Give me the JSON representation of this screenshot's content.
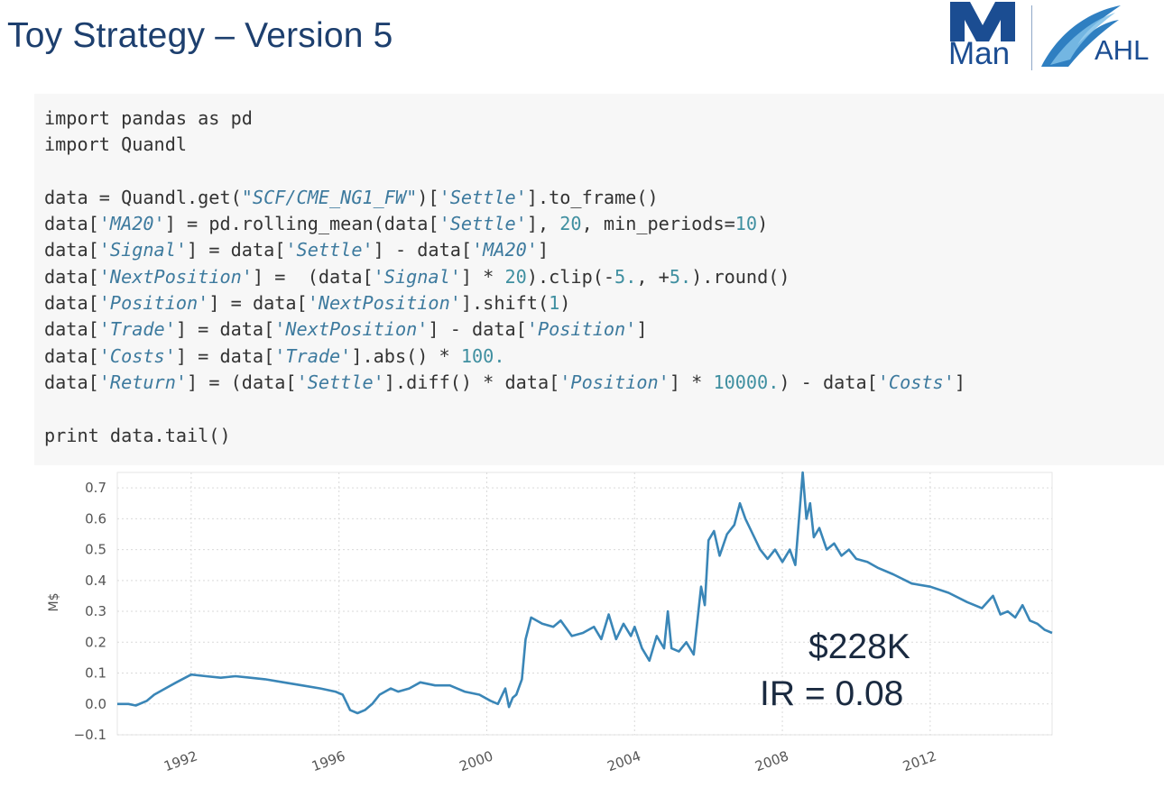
{
  "slide": {
    "title": "Toy Strategy – Version 5"
  },
  "logo": {
    "man_text": "Man",
    "ahl_text": "AHL",
    "color": "#1b4d92"
  },
  "code": {
    "lines": [
      [
        {
          "t": "import pandas as pd",
          "c": ""
        }
      ],
      [
        {
          "t": "import Quandl",
          "c": ""
        }
      ],
      [
        {
          "t": "",
          "c": ""
        }
      ],
      [
        {
          "t": "data = Quandl.get(",
          "c": ""
        },
        {
          "t": "\"SCF/CME_NG1_FW\"",
          "c": "str"
        },
        {
          "t": ")[",
          "c": ""
        },
        {
          "t": "'Settle'",
          "c": "str"
        },
        {
          "t": "].to_frame()",
          "c": ""
        }
      ],
      [
        {
          "t": "data[",
          "c": ""
        },
        {
          "t": "'MA20'",
          "c": "str"
        },
        {
          "t": "] = pd.rolling_mean(data[",
          "c": ""
        },
        {
          "t": "'Settle'",
          "c": "str"
        },
        {
          "t": "], ",
          "c": ""
        },
        {
          "t": "20",
          "c": "num"
        },
        {
          "t": ", min_periods=",
          "c": ""
        },
        {
          "t": "10",
          "c": "num"
        },
        {
          "t": ")",
          "c": ""
        }
      ],
      [
        {
          "t": "data[",
          "c": ""
        },
        {
          "t": "'Signal'",
          "c": "str"
        },
        {
          "t": "] = data[",
          "c": ""
        },
        {
          "t": "'Settle'",
          "c": "str"
        },
        {
          "t": "] - data[",
          "c": ""
        },
        {
          "t": "'MA20'",
          "c": "str"
        },
        {
          "t": "]",
          "c": ""
        }
      ],
      [
        {
          "t": "data[",
          "c": ""
        },
        {
          "t": "'NextPosition'",
          "c": "str"
        },
        {
          "t": "] =  (data[",
          "c": ""
        },
        {
          "t": "'Signal'",
          "c": "str"
        },
        {
          "t": "] * ",
          "c": ""
        },
        {
          "t": "20",
          "c": "num"
        },
        {
          "t": ").clip(-",
          "c": ""
        },
        {
          "t": "5.",
          "c": "num"
        },
        {
          "t": ", +",
          "c": ""
        },
        {
          "t": "5.",
          "c": "num"
        },
        {
          "t": ").round()",
          "c": ""
        }
      ],
      [
        {
          "t": "data[",
          "c": ""
        },
        {
          "t": "'Position'",
          "c": "str"
        },
        {
          "t": "] = data[",
          "c": ""
        },
        {
          "t": "'NextPosition'",
          "c": "str"
        },
        {
          "t": "].shift(",
          "c": ""
        },
        {
          "t": "1",
          "c": "num"
        },
        {
          "t": ")",
          "c": ""
        }
      ],
      [
        {
          "t": "data[",
          "c": ""
        },
        {
          "t": "'Trade'",
          "c": "str"
        },
        {
          "t": "] = data[",
          "c": ""
        },
        {
          "t": "'NextPosition'",
          "c": "str"
        },
        {
          "t": "] - data[",
          "c": ""
        },
        {
          "t": "'Position'",
          "c": "str"
        },
        {
          "t": "]",
          "c": ""
        }
      ],
      [
        {
          "t": "data[",
          "c": ""
        },
        {
          "t": "'Costs'",
          "c": "str"
        },
        {
          "t": "] = data[",
          "c": ""
        },
        {
          "t": "'Trade'",
          "c": "str"
        },
        {
          "t": "].abs() * ",
          "c": ""
        },
        {
          "t": "100.",
          "c": "num"
        }
      ],
      [
        {
          "t": "data[",
          "c": ""
        },
        {
          "t": "'Return'",
          "c": "str"
        },
        {
          "t": "] = (data[",
          "c": ""
        },
        {
          "t": "'Settle'",
          "c": "str"
        },
        {
          "t": "].diff() * data[",
          "c": ""
        },
        {
          "t": "'Position'",
          "c": "str"
        },
        {
          "t": "] * ",
          "c": ""
        },
        {
          "t": "10000.",
          "c": "num"
        },
        {
          "t": ") - data[",
          "c": ""
        },
        {
          "t": "'Costs'",
          "c": "str"
        },
        {
          "t": "]",
          "c": ""
        }
      ],
      [
        {
          "t": "",
          "c": ""
        }
      ],
      [
        {
          "t": "print data.tail()",
          "c": ""
        }
      ]
    ]
  },
  "annotations": {
    "pnl": "$228K",
    "ir": "IR = 0.08"
  },
  "chart_data": {
    "type": "line",
    "title": "",
    "xlabel": "",
    "ylabel": "M$",
    "xlim": [
      1990.0,
      2015.3
    ],
    "ylim": [
      -0.1,
      0.75
    ],
    "x_ticks": [
      1992,
      1996,
      2000,
      2004,
      2008,
      2012
    ],
    "y_ticks": [
      -0.1,
      0.0,
      0.1,
      0.2,
      0.3,
      0.4,
      0.5,
      0.6,
      0.7
    ],
    "y_tick_labels": [
      "−0.1",
      "0.0",
      "0.1",
      "0.2",
      "0.3",
      "0.4",
      "0.5",
      "0.6",
      "0.7"
    ],
    "grid": true,
    "line_color": "#3a86b7",
    "series": [
      {
        "x": [
          1990.0,
          1990.3,
          1990.5,
          1990.8,
          1991.0,
          1991.3,
          1991.6,
          1992.0,
          1992.4,
          1992.8,
          1993.2,
          1993.6,
          1994.0,
          1994.5,
          1995.0,
          1995.5,
          1995.9,
          1996.1,
          1996.3,
          1996.5,
          1996.7,
          1996.9,
          1997.1,
          1997.4,
          1997.6,
          1997.9,
          1998.2,
          1998.6,
          1999.0,
          1999.4,
          1999.8,
          2000.1,
          2000.3,
          2000.5,
          2000.6,
          2000.7,
          2000.8,
          2000.95,
          2001.05,
          2001.2,
          2001.5,
          2001.8,
          2002.0,
          2002.3,
          2002.6,
          2002.9,
          2003.1,
          2003.3,
          2003.5,
          2003.7,
          2003.9,
          2004.0,
          2004.2,
          2004.4,
          2004.6,
          2004.8,
          2004.9,
          2005.0,
          2005.2,
          2005.4,
          2005.6,
          2005.8,
          2005.9,
          2006.0,
          2006.15,
          2006.3,
          2006.5,
          2006.7,
          2006.85,
          2007.0,
          2007.2,
          2007.4,
          2007.6,
          2007.8,
          2008.0,
          2008.2,
          2008.35,
          2008.45,
          2008.55,
          2008.65,
          2008.75,
          2008.85,
          2009.0,
          2009.2,
          2009.4,
          2009.6,
          2009.8,
          2010.0,
          2010.3,
          2010.6,
          2011.0,
          2011.5,
          2012.0,
          2012.5,
          2013.0,
          2013.4,
          2013.7,
          2013.9,
          2014.1,
          2014.3,
          2014.5,
          2014.7,
          2014.9,
          2015.1,
          2015.3
        ],
        "y": [
          0.0,
          0.0,
          -0.005,
          0.01,
          0.03,
          0.05,
          0.07,
          0.095,
          0.09,
          0.085,
          0.09,
          0.085,
          0.08,
          0.07,
          0.06,
          0.05,
          0.04,
          0.03,
          -0.02,
          -0.03,
          -0.02,
          0.0,
          0.03,
          0.05,
          0.04,
          0.05,
          0.07,
          0.06,
          0.06,
          0.04,
          0.03,
          0.01,
          0.0,
          0.05,
          -0.01,
          0.02,
          0.03,
          0.08,
          0.21,
          0.28,
          0.26,
          0.25,
          0.27,
          0.22,
          0.23,
          0.25,
          0.21,
          0.29,
          0.21,
          0.26,
          0.22,
          0.25,
          0.18,
          0.14,
          0.22,
          0.18,
          0.3,
          0.18,
          0.17,
          0.2,
          0.16,
          0.38,
          0.32,
          0.53,
          0.56,
          0.48,
          0.55,
          0.58,
          0.65,
          0.6,
          0.55,
          0.5,
          0.47,
          0.5,
          0.46,
          0.5,
          0.45,
          0.6,
          0.75,
          0.6,
          0.65,
          0.54,
          0.57,
          0.5,
          0.52,
          0.48,
          0.5,
          0.47,
          0.46,
          0.44,
          0.42,
          0.39,
          0.38,
          0.36,
          0.33,
          0.31,
          0.35,
          0.29,
          0.3,
          0.28,
          0.32,
          0.27,
          0.26,
          0.24,
          0.23
        ]
      }
    ]
  }
}
